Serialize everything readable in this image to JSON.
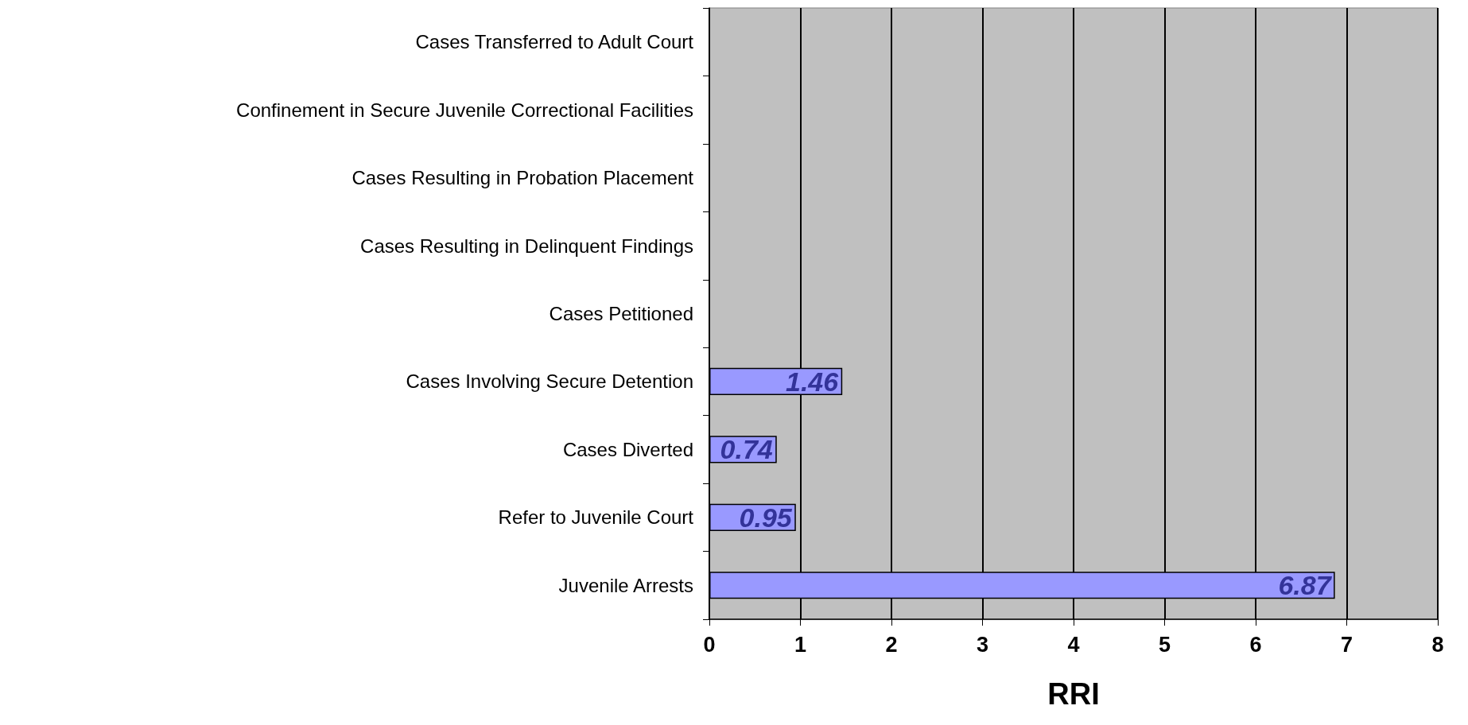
{
  "chart_data": {
    "type": "bar",
    "orientation": "horizontal",
    "xlabel": "RRI",
    "categories": [
      "Cases Transferred to Adult Court",
      "Confinement in Secure Juvenile Correctional Facilities",
      "Cases Resulting in Probation Placement",
      "Cases Resulting in Delinquent Findings",
      "Cases Petitioned",
      "Cases Involving Secure Detention",
      "Cases Diverted",
      "Refer to Juvenile Court",
      "Juvenile Arrests"
    ],
    "values": [
      null,
      null,
      null,
      null,
      null,
      1.46,
      0.74,
      0.95,
      6.87
    ],
    "color": "#9999ff",
    "data_labels": true,
    "xlim": [
      0,
      8
    ],
    "xticks": [
      0,
      1,
      2,
      3,
      4,
      5,
      6,
      7,
      8
    ],
    "grid": "x"
  }
}
